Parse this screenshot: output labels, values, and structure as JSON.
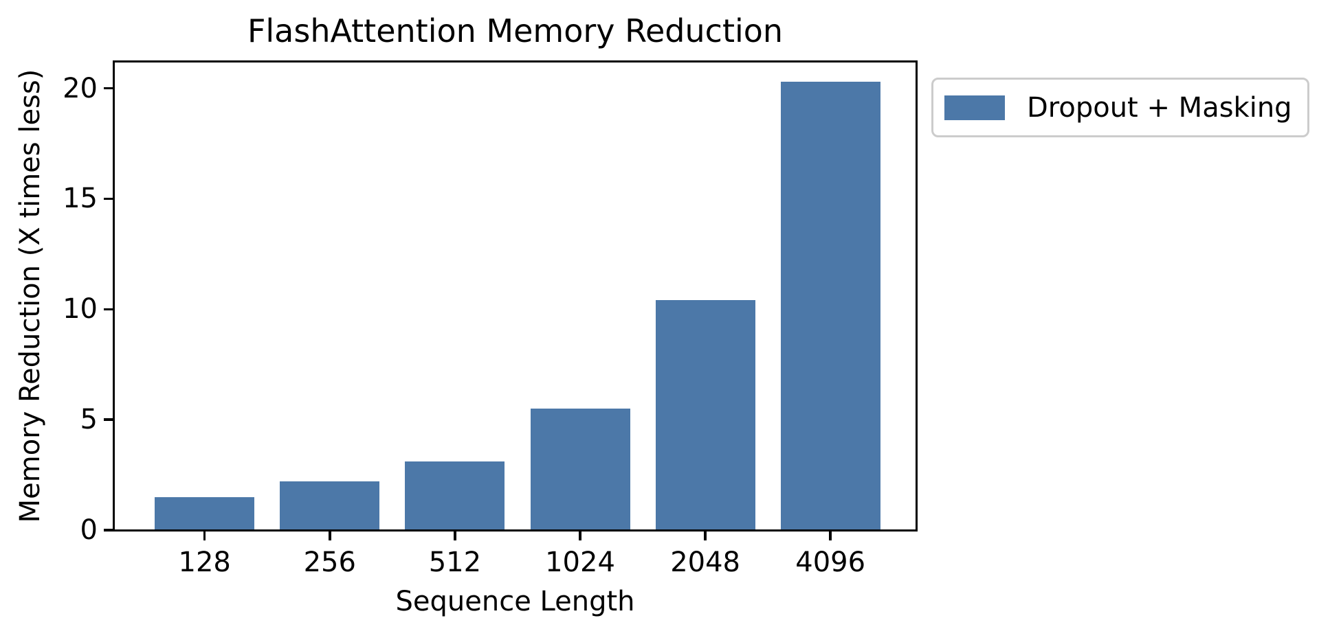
{
  "chart_data": {
    "type": "bar",
    "title": "FlashAttention Memory Reduction",
    "xlabel": "Sequence Length",
    "ylabel": "Memory Reduction (X times less)",
    "categories": [
      "128",
      "256",
      "512",
      "1024",
      "2048",
      "4096"
    ],
    "series": [
      {
        "name": "Dropout + Masking",
        "values": [
          1.5,
          2.2,
          3.1,
          5.5,
          10.4,
          20.3
        ]
      }
    ],
    "y_ticks": [
      0,
      5,
      10,
      15,
      20
    ],
    "ylim": [
      0,
      21.2
    ],
    "grid": false,
    "legend_position": "outside-upper-right",
    "colors": {
      "bar": "#4C78A8",
      "axis": "#000000",
      "legend_border": "#cccccc",
      "background": "#ffffff"
    }
  }
}
